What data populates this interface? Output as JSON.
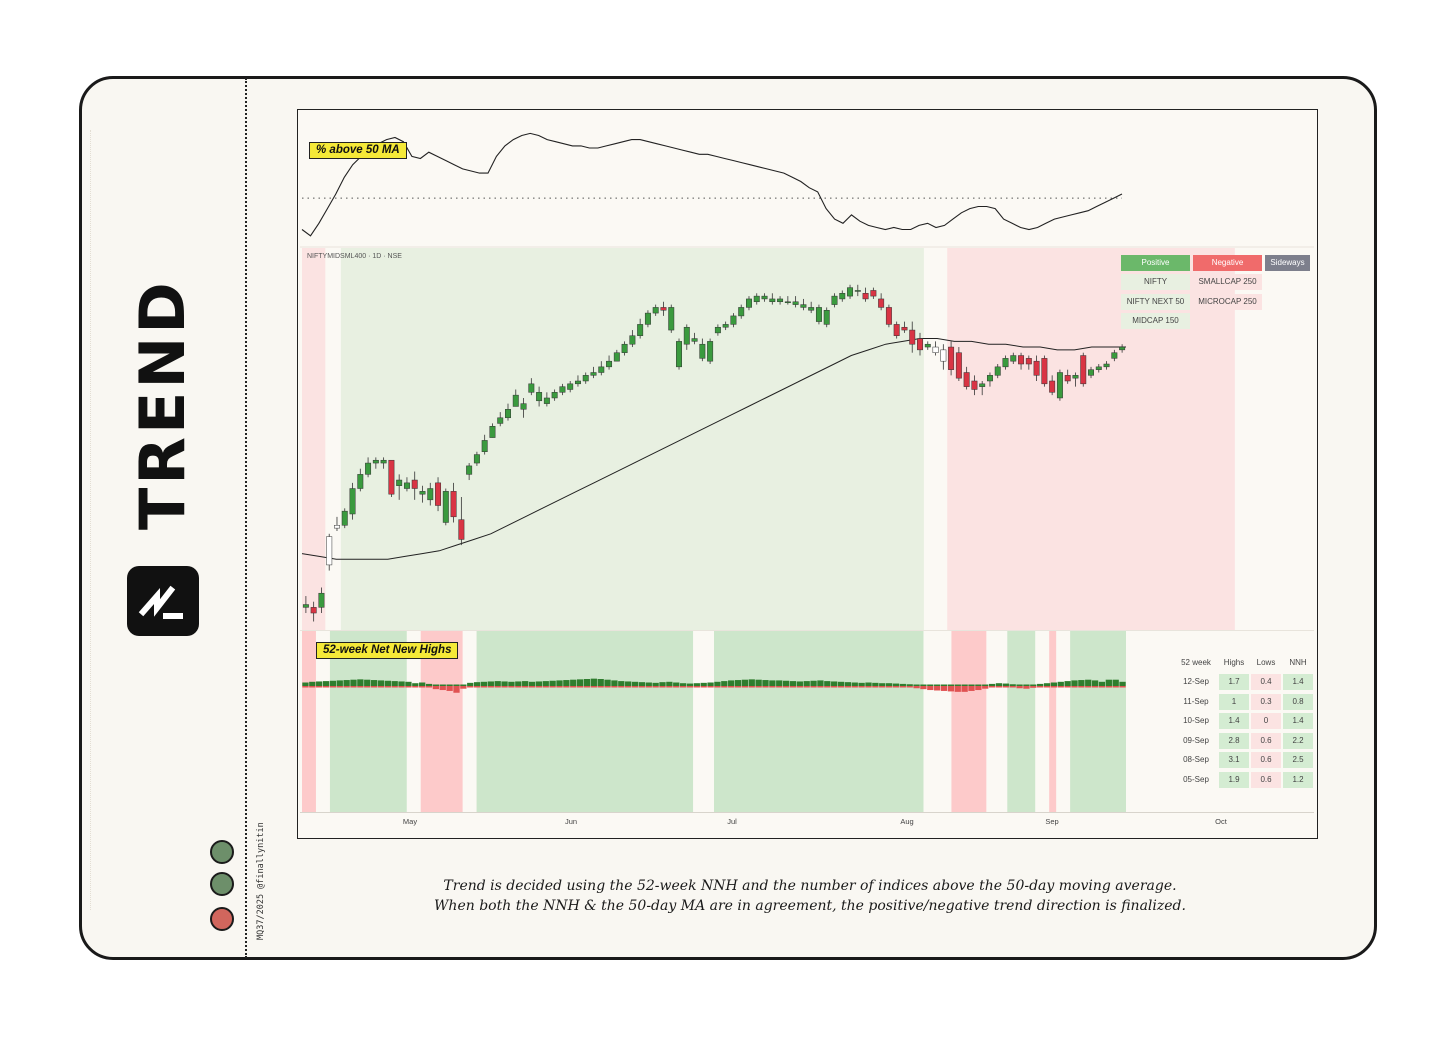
{
  "brand": {
    "title": "TREND",
    "logo_icon": "trend-logo-icon"
  },
  "credit": "MQ37/2025 @finallynitin",
  "status_dots": [
    {
      "color": "#6d8f6a"
    },
    {
      "color": "#6d8f6a"
    },
    {
      "color": "#d1665d"
    }
  ],
  "panels": {
    "ma_title": "% above 50 MA",
    "nnh_title": "52-week Net New Highs",
    "symbol": "NIFTYMIDSML400 · 1D · NSE"
  },
  "legend": {
    "headers": [
      "Positive",
      "Negative",
      "Sideways"
    ],
    "header_colors": [
      "#6bb86a",
      "#f06b6b",
      "#7d7f8c"
    ],
    "positive": [
      "NIFTY",
      "NIFTY NEXT 50",
      "MIDCAP 150"
    ],
    "negative": [
      "SMALLCAP 250",
      "MICROCAP 250"
    ],
    "sideways": []
  },
  "nnh_table": {
    "columns": [
      "52 week",
      "Highs",
      "Lows",
      "NNH"
    ],
    "rows": [
      [
        "12-Sep",
        "1.7",
        "0.4",
        "1.4"
      ],
      [
        "11-Sep",
        "1",
        "0.3",
        "0.8"
      ],
      [
        "10-Sep",
        "1.4",
        "0",
        "1.4"
      ],
      [
        "09-Sep",
        "2.8",
        "0.6",
        "2.2"
      ],
      [
        "08-Sep",
        "3.1",
        "0.6",
        "2.5"
      ],
      [
        "05-Sep",
        "1.9",
        "0.6",
        "1.2"
      ]
    ]
  },
  "x_ticks": [
    "May",
    "Jun",
    "Jul",
    "Aug",
    "Sep",
    "Oct"
  ],
  "caption": [
    "Trend is decided using the 52-week NNH and the number of indices above the 50-day moving average.",
    "When both the NNH & the 50-day MA are in agreement, the positive/negative trend direction is finalized."
  ],
  "chart_data": {
    "type": "line",
    "ma_breadth": {
      "name": "% above 50 MA",
      "values": [
        45,
        42,
        48,
        55,
        62,
        70,
        76,
        80,
        84,
        86,
        88,
        89,
        87,
        80,
        79,
        82,
        80,
        78,
        76,
        74,
        73,
        72,
        72,
        80,
        85,
        88,
        90,
        91,
        90,
        88,
        87,
        86,
        85,
        85,
        84,
        84,
        85,
        86,
        87,
        88,
        88,
        87,
        86,
        85,
        84,
        83,
        82,
        81,
        81,
        80,
        79,
        78,
        77,
        76,
        75,
        74,
        73,
        72,
        70,
        68,
        65,
        63,
        55,
        50,
        48,
        52,
        49,
        47,
        46,
        45,
        46,
        45,
        45,
        47,
        48,
        46,
        47,
        50,
        53,
        55,
        56,
        56,
        55,
        50,
        48,
        46,
        45,
        46,
        48,
        50,
        51,
        52,
        53,
        54,
        56,
        58,
        60,
        62
      ],
      "threshold": 60
    },
    "candles": [
      {
        "o": 548,
        "h": 552,
        "l": 546,
        "c": 549
      },
      {
        "o": 548,
        "h": 550,
        "l": 543,
        "c": 546
      },
      {
        "o": 548,
        "h": 555,
        "l": 546,
        "c": 553
      },
      {
        "o": 563,
        "h": 574,
        "l": 561,
        "c": 573
      },
      {
        "o": 576,
        "h": 580,
        "l": 575,
        "c": 577
      },
      {
        "o": 577,
        "h": 583,
        "l": 576,
        "c": 582
      },
      {
        "o": 581,
        "h": 592,
        "l": 579,
        "c": 590
      },
      {
        "o": 590,
        "h": 597,
        "l": 589,
        "c": 595
      },
      {
        "o": 595,
        "h": 601,
        "l": 594,
        "c": 599
      },
      {
        "o": 599,
        "h": 601,
        "l": 597,
        "c": 600
      },
      {
        "o": 599,
        "h": 601,
        "l": 597,
        "c": 600
      },
      {
        "o": 600,
        "h": 600,
        "l": 587,
        "c": 588
      },
      {
        "o": 591,
        "h": 595,
        "l": 586,
        "c": 593
      },
      {
        "o": 590,
        "h": 594,
        "l": 589,
        "c": 592
      },
      {
        "o": 593,
        "h": 596,
        "l": 586,
        "c": 590
      },
      {
        "o": 588,
        "h": 591,
        "l": 585,
        "c": 589
      },
      {
        "o": 586,
        "h": 592,
        "l": 584,
        "c": 590
      },
      {
        "o": 592,
        "h": 594,
        "l": 582,
        "c": 584
      },
      {
        "o": 578,
        "h": 590,
        "l": 577,
        "c": 589
      },
      {
        "o": 589,
        "h": 592,
        "l": 578,
        "c": 580
      },
      {
        "o": 579,
        "h": 587,
        "l": 570,
        "c": 572
      },
      {
        "o": 595,
        "h": 599,
        "l": 593,
        "c": 598
      },
      {
        "o": 599,
        "h": 603,
        "l": 598,
        "c": 602
      },
      {
        "o": 603,
        "h": 609,
        "l": 602,
        "c": 607
      },
      {
        "o": 608,
        "h": 613,
        "l": 608,
        "c": 612
      },
      {
        "o": 613,
        "h": 617,
        "l": 612,
        "c": 615
      },
      {
        "o": 615,
        "h": 620,
        "l": 614,
        "c": 618
      },
      {
        "o": 619,
        "h": 625,
        "l": 619,
        "c": 623
      },
      {
        "o": 618,
        "h": 622,
        "l": 615,
        "c": 620
      },
      {
        "o": 624,
        "h": 629,
        "l": 623,
        "c": 627
      },
      {
        "o": 621,
        "h": 626,
        "l": 619,
        "c": 624
      },
      {
        "o": 620,
        "h": 624,
        "l": 619,
        "c": 622
      },
      {
        "o": 622,
        "h": 625,
        "l": 621,
        "c": 624
      },
      {
        "o": 624,
        "h": 627,
        "l": 623,
        "c": 626
      },
      {
        "o": 625,
        "h": 628,
        "l": 624,
        "c": 627
      },
      {
        "o": 627,
        "h": 630,
        "l": 626,
        "c": 628
      },
      {
        "o": 628,
        "h": 631,
        "l": 627,
        "c": 630
      },
      {
        "o": 630,
        "h": 633,
        "l": 629,
        "c": 631
      },
      {
        "o": 631,
        "h": 635,
        "l": 630,
        "c": 633
      },
      {
        "o": 633,
        "h": 637,
        "l": 632,
        "c": 635
      },
      {
        "o": 635,
        "h": 639,
        "l": 635,
        "c": 638
      },
      {
        "o": 638,
        "h": 642,
        "l": 637,
        "c": 641
      },
      {
        "o": 641,
        "h": 646,
        "l": 640,
        "c": 644
      },
      {
        "o": 644,
        "h": 650,
        "l": 643,
        "c": 648
      },
      {
        "o": 648,
        "h": 653,
        "l": 647,
        "c": 652
      },
      {
        "o": 652,
        "h": 655,
        "l": 651,
        "c": 654
      },
      {
        "o": 654,
        "h": 656,
        "l": 651,
        "c": 653
      },
      {
        "o": 646,
        "h": 655,
        "l": 645,
        "c": 654
      },
      {
        "o": 633,
        "h": 643,
        "l": 632,
        "c": 642
      },
      {
        "o": 641,
        "h": 648,
        "l": 639,
        "c": 647
      },
      {
        "o": 642,
        "h": 645,
        "l": 641,
        "c": 643
      },
      {
        "o": 636,
        "h": 643,
        "l": 635,
        "c": 641
      },
      {
        "o": 635,
        "h": 643,
        "l": 634,
        "c": 642
      },
      {
        "o": 645,
        "h": 648,
        "l": 644,
        "c": 647
      },
      {
        "o": 647,
        "h": 649,
        "l": 646,
        "c": 648
      },
      {
        "o": 648,
        "h": 652,
        "l": 647,
        "c": 651
      },
      {
        "o": 651,
        "h": 655,
        "l": 650,
        "c": 654
      },
      {
        "o": 654,
        "h": 658,
        "l": 653,
        "c": 657
      },
      {
        "o": 656,
        "h": 659,
        "l": 655,
        "c": 658
      },
      {
        "o": 657,
        "h": 659,
        "l": 656,
        "c": 658
      },
      {
        "o": 656,
        "h": 659,
        "l": 655,
        "c": 657
      },
      {
        "o": 656,
        "h": 658,
        "l": 655,
        "c": 657
      },
      {
        "o": 656,
        "h": 658,
        "l": 655,
        "c": 656
      },
      {
        "o": 655,
        "h": 658,
        "l": 654,
        "c": 656
      },
      {
        "o": 654,
        "h": 657,
        "l": 653,
        "c": 655
      },
      {
        "o": 653,
        "h": 656,
        "l": 652,
        "c": 654
      },
      {
        "o": 649,
        "h": 655,
        "l": 648,
        "c": 654
      },
      {
        "o": 648,
        "h": 654,
        "l": 647,
        "c": 653
      },
      {
        "o": 655,
        "h": 659,
        "l": 654,
        "c": 658
      },
      {
        "o": 657,
        "h": 660,
        "l": 656,
        "c": 659
      },
      {
        "o": 658,
        "h": 662,
        "l": 657,
        "c": 661
      },
      {
        "o": 660,
        "h": 662,
        "l": 658,
        "c": 660
      },
      {
        "o": 659,
        "h": 661,
        "l": 656,
        "c": 657
      },
      {
        "o": 660,
        "h": 661,
        "l": 657,
        "c": 658
      },
      {
        "o": 657,
        "h": 659,
        "l": 653,
        "c": 654
      },
      {
        "o": 654,
        "h": 655,
        "l": 647,
        "c": 648
      },
      {
        "o": 648,
        "h": 649,
        "l": 643,
        "c": 644
      },
      {
        "o": 647,
        "h": 649,
        "l": 645,
        "c": 646
      },
      {
        "o": 646,
        "h": 649,
        "l": 638,
        "c": 641
      },
      {
        "o": 643,
        "h": 645,
        "l": 637,
        "c": 639
      },
      {
        "o": 640,
        "h": 642,
        "l": 639,
        "c": 641
      },
      {
        "o": 640,
        "h": 642,
        "l": 637,
        "c": 638
      },
      {
        "o": 639,
        "h": 641,
        "l": 632,
        "c": 635
      },
      {
        "o": 640,
        "h": 642,
        "l": 630,
        "c": 632
      },
      {
        "o": 638,
        "h": 640,
        "l": 628,
        "c": 629
      },
      {
        "o": 631,
        "h": 633,
        "l": 625,
        "c": 626
      },
      {
        "o": 628,
        "h": 630,
        "l": 623,
        "c": 625
      },
      {
        "o": 626,
        "h": 628,
        "l": 623,
        "c": 627
      },
      {
        "o": 628,
        "h": 631,
        "l": 626,
        "c": 630
      },
      {
        "o": 630,
        "h": 634,
        "l": 629,
        "c": 633
      },
      {
        "o": 633,
        "h": 637,
        "l": 632,
        "c": 636
      },
      {
        "o": 635,
        "h": 638,
        "l": 634,
        "c": 637
      },
      {
        "o": 637,
        "h": 638,
        "l": 632,
        "c": 634
      },
      {
        "o": 636,
        "h": 637,
        "l": 632,
        "c": 634
      },
      {
        "o": 635,
        "h": 637,
        "l": 628,
        "c": 630
      },
      {
        "o": 636,
        "h": 637,
        "l": 626,
        "c": 627
      },
      {
        "o": 628,
        "h": 630,
        "l": 623,
        "c": 624
      },
      {
        "o": 622,
        "h": 632,
        "l": 621,
        "c": 631
      },
      {
        "o": 630,
        "h": 632,
        "l": 627,
        "c": 628
      },
      {
        "o": 629,
        "h": 631,
        "l": 626,
        "c": 630
      },
      {
        "o": 637,
        "h": 638,
        "l": 626,
        "c": 627
      },
      {
        "o": 630,
        "h": 633,
        "l": 629,
        "c": 632
      },
      {
        "o": 632,
        "h": 634,
        "l": 631,
        "c": 633
      },
      {
        "o": 633,
        "h": 635,
        "l": 632,
        "c": 634
      },
      {
        "o": 636,
        "h": 639,
        "l": 635,
        "c": 638
      },
      {
        "o": 639,
        "h": 641,
        "l": 638,
        "c": 640
      }
    ],
    "ma50": [
      567,
      566,
      565,
      565,
      565,
      565,
      566,
      567,
      568,
      570,
      572,
      574,
      577,
      580,
      583,
      586,
      589,
      592,
      595,
      598,
      601,
      604,
      607,
      610,
      613,
      616,
      619,
      622,
      625,
      628,
      631,
      634,
      637,
      639,
      641,
      642,
      643,
      643,
      642,
      642,
      641,
      641,
      640,
      640,
      639,
      639,
      640,
      640,
      640
    ],
    "trend_zones": [
      {
        "state": "negative",
        "from": 0,
        "to": 3
      },
      {
        "state": "neutral",
        "from": 3,
        "to": 5
      },
      {
        "state": "positive",
        "from": 5,
        "to": 80
      },
      {
        "state": "neutral",
        "from": 80,
        "to": 83
      },
      {
        "state": "negative",
        "from": 83,
        "to": 120
      }
    ],
    "nnh_zones": [
      {
        "state": "negative",
        "from": 0,
        "to": 2
      },
      {
        "state": "neutral",
        "from": 2,
        "to": 4
      },
      {
        "state": "positive",
        "from": 4,
        "to": 15
      },
      {
        "state": "neutral",
        "from": 15,
        "to": 17
      },
      {
        "state": "negative",
        "from": 17,
        "to": 23
      },
      {
        "state": "neutral",
        "from": 23,
        "to": 25
      },
      {
        "state": "positive",
        "from": 25,
        "to": 56
      },
      {
        "state": "neutral",
        "from": 56,
        "to": 59
      },
      {
        "state": "positive",
        "from": 59,
        "to": 89
      },
      {
        "state": "neutral",
        "from": 89,
        "to": 93
      },
      {
        "state": "negative",
        "from": 93,
        "to": 98
      },
      {
        "state": "neutral",
        "from": 98,
        "to": 101
      },
      {
        "state": "positive",
        "from": 101,
        "to": 105
      },
      {
        "state": "neutral",
        "from": 105,
        "to": 107
      },
      {
        "state": "negative",
        "from": 107,
        "to": 108
      },
      {
        "state": "neutral",
        "from": 108,
        "to": 110
      },
      {
        "state": "positive",
        "from": 110,
        "to": 118
      }
    ],
    "nnh_values": [
      0.6,
      0.8,
      0.9,
      1.0,
      1.1,
      1.2,
      1.3,
      1.4,
      1.5,
      1.4,
      1.3,
      1.2,
      1.1,
      1.0,
      0.9,
      0.8,
      0.4,
      0.6,
      0.2,
      -0.4,
      -0.6,
      -0.8,
      -1.2,
      -0.3,
      0.5,
      0.7,
      0.8,
      0.9,
      1.0,
      0.9,
      0.8,
      0.9,
      1.0,
      0.8,
      0.9,
      1.0,
      1.1,
      1.2,
      1.3,
      1.4,
      1.5,
      1.6,
      1.7,
      1.6,
      1.4,
      1.2,
      1.0,
      0.9,
      0.8,
      0.7,
      0.6,
      0.5,
      0.7,
      0.8,
      0.6,
      0.4,
      0.3,
      0.4,
      0.5,
      0.6,
      0.8,
      1.0,
      1.2,
      1.3,
      1.4,
      1.5,
      1.4,
      1.3,
      1.2,
      1.2,
      1.1,
      1.0,
      0.9,
      1.0,
      1.1,
      1.2,
      1.0,
      0.9,
      0.8,
      0.7,
      0.6,
      0.5,
      0.6,
      0.5,
      0.4,
      0.4,
      0.3,
      0.2,
      0.1,
      -0.2,
      -0.4,
      -0.6,
      -0.7,
      -0.8,
      -0.9,
      -1.0,
      -1.0,
      -0.8,
      -0.6,
      -0.3,
      0.2,
      0.4,
      0.3,
      0.1,
      -0.2,
      -0.3,
      -0.1,
      0.2,
      0.4,
      0.6,
      0.8,
      1.0,
      1.2,
      1.3,
      1.4,
      1.2,
      0.8,
      1.4,
      1.4,
      0.8
    ],
    "x_ticks": [
      "May",
      "Jun",
      "Jul",
      "Aug",
      "Sep",
      "Oct"
    ],
    "colors": {
      "up": "#3a9a3e",
      "down": "#d93444",
      "positive_bg": "#e8f0e1",
      "negative_bg": "#fbe3e2",
      "nnh_positive_bg": "#cde6cb",
      "nnh_negative_bg": "#fdcaca"
    }
  }
}
